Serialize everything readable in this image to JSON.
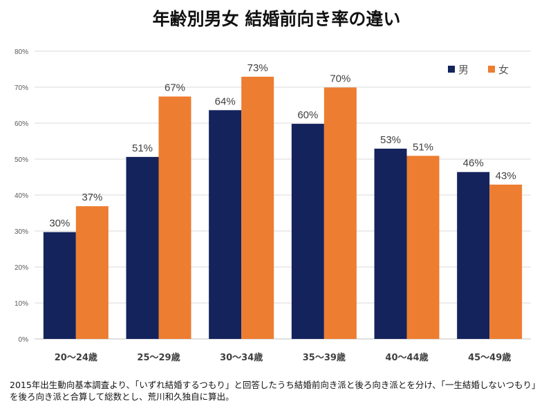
{
  "chart_data": {
    "type": "bar",
    "title": "年齢別男女 結婚前向き率の違い",
    "categories": [
      "20～24歳",
      "25～29歳",
      "30～34歳",
      "35～39歳",
      "40～44歳",
      "45～49歳"
    ],
    "series": [
      {
        "name": "男",
        "color": "#14235c",
        "values": [
          30,
          51,
          64,
          60,
          53,
          46
        ],
        "labels": [
          "30%",
          "51%",
          "64%",
          "60%",
          "53%",
          "46%"
        ],
        "raw": [
          29.7,
          50.6,
          63.6,
          59.8,
          52.9,
          46.4
        ]
      },
      {
        "name": "女",
        "color": "#ed7d31",
        "values": [
          37,
          67,
          73,
          70,
          51,
          43
        ],
        "labels": [
          "37%",
          "67%",
          "73%",
          "70%",
          "51%",
          "43%"
        ],
        "raw": [
          36.9,
          67.4,
          72.9,
          69.9,
          50.9,
          42.9
        ]
      }
    ],
    "yticks": [
      "0%",
      "10%",
      "20%",
      "30%",
      "40%",
      "50%",
      "60%",
      "70%",
      "80%"
    ],
    "ylim": [
      0,
      80
    ],
    "grid": true,
    "legend_position": "top-right",
    "xlabel": "",
    "ylabel": ""
  },
  "footnote": "2015年出生動向基本調査より、「いずれ結婚するつもり」と回答したうち結婚前向き派と後ろ向き派とを分け、「一生結婚しないつもり」を後ろ向き派と合算して総数とし、荒川和久独自に算出。"
}
